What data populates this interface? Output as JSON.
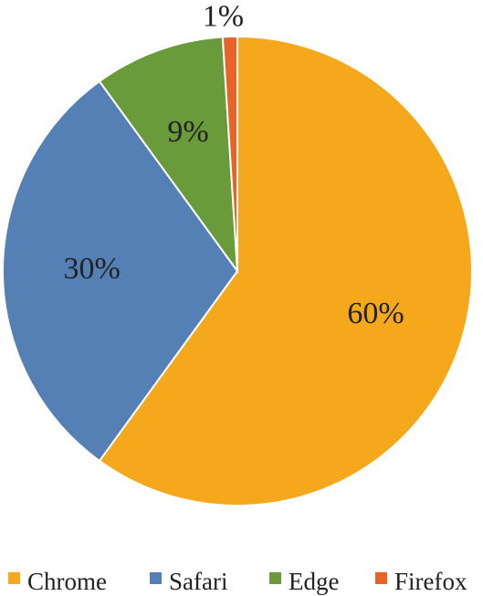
{
  "chart_data": {
    "type": "pie",
    "categories": [
      "Chrome",
      "Safari",
      "Edge",
      "Firefox"
    ],
    "values": [
      60,
      30,
      9,
      1
    ],
    "labels": [
      "60%",
      "30%",
      "9%",
      "1%"
    ],
    "colors": [
      "#F5A81C",
      "#5480B6",
      "#6A9B3A",
      "#E8622A"
    ],
    "legend": "bottom",
    "start": "12 o'clock",
    "direction": "clockwise"
  }
}
